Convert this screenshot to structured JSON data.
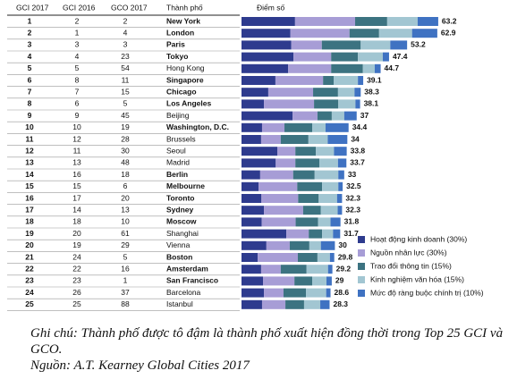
{
  "header": {
    "gci2017": "GCI 2017",
    "gci2016": "GCI 2016",
    "gco2017": "GCO 2017",
    "city": "Thành phố",
    "score": "Điểm số"
  },
  "series": [
    {
      "name": "Hoạt động kinh doanh (30%)",
      "color": "#2e3b8e"
    },
    {
      "name": "Nguồn nhân lực (30%)",
      "color": "#a79dd6"
    },
    {
      "name": "Trao đổi thông tin (15%)",
      "color": "#3c7381"
    },
    {
      "name": "Kinh nghiệm văn hóa (15%)",
      "color": "#a2c6d2"
    },
    {
      "name": "Mức độ ràng buộc chính trị (10%)",
      "color": "#3f72c2"
    }
  ],
  "rows": [
    {
      "gci2017": 1,
      "gci2016": 2,
      "gco2017": 2,
      "city": "New York",
      "bold": true,
      "segments": [
        17.2,
        19.3,
        10.3,
        9.8,
        6.6
      ],
      "score": 63.2
    },
    {
      "gci2017": 2,
      "gci2016": 1,
      "gco2017": 4,
      "city": "London",
      "bold": true,
      "segments": [
        15.7,
        19.0,
        9.5,
        10.6,
        8.1
      ],
      "score": 62.9
    },
    {
      "gci2017": 3,
      "gci2016": 3,
      "gco2017": 3,
      "city": "Paris",
      "bold": true,
      "segments": [
        16.0,
        9.8,
        12.5,
        9.5,
        5.4
      ],
      "score": 53.2
    },
    {
      "gci2017": 4,
      "gci2016": 4,
      "gco2017": 23,
      "city": "Tokyo",
      "bold": true,
      "segments": [
        16.7,
        12.1,
        8.6,
        8.0,
        2.0
      ],
      "score": 47.4
    },
    {
      "gci2017": 5,
      "gci2016": 5,
      "gco2017": 54,
      "city": "Hong Kong",
      "bold": false,
      "segments": [
        15.0,
        13.8,
        10.2,
        3.8,
        1.9
      ],
      "score": 44.7
    },
    {
      "gci2017": 6,
      "gci2016": 8,
      "gco2017": 11,
      "city": "Singapore",
      "bold": true,
      "segments": [
        10.9,
        15.3,
        3.4,
        7.8,
        1.7
      ],
      "score": 39.1
    },
    {
      "gci2017": 7,
      "gci2016": 7,
      "gco2017": 15,
      "city": "Chicago",
      "bold": true,
      "segments": [
        8.6,
        14.4,
        8.0,
        5.3,
        2.0
      ],
      "score": 38.3
    },
    {
      "gci2017": 8,
      "gci2016": 6,
      "gco2017": 5,
      "city": "Los Angeles",
      "bold": true,
      "segments": [
        7.2,
        16.1,
        7.8,
        5.5,
        1.5
      ],
      "score": 38.1
    },
    {
      "gci2017": 9,
      "gci2016": 9,
      "gco2017": 45,
      "city": "Beijing",
      "bold": false,
      "segments": [
        16.4,
        8.0,
        4.6,
        4.0,
        4.0
      ],
      "score": 37.0
    },
    {
      "gci2017": 10,
      "gci2016": 10,
      "gco2017": 19,
      "city": "Washington, D.C.",
      "bold": true,
      "segments": [
        6.6,
        7.2,
        8.9,
        4.3,
        7.4
      ],
      "score": 34.4
    },
    {
      "gci2017": 11,
      "gci2016": 12,
      "gco2017": 28,
      "city": "Brussels",
      "bold": false,
      "segments": [
        6.3,
        6.3,
        8.9,
        6.2,
        6.3
      ],
      "score": 34.0
    },
    {
      "gci2017": 12,
      "gci2016": 11,
      "gco2017": 30,
      "city": "Seoul",
      "bold": false,
      "segments": [
        11.5,
        5.8,
        6.6,
        5.8,
        4.1
      ],
      "score": 33.8
    },
    {
      "gci2017": 13,
      "gci2016": 13,
      "gco2017": 48,
      "city": "Madrid",
      "bold": false,
      "segments": [
        11.0,
        6.3,
        7.7,
        6.0,
        2.7
      ],
      "score": 33.7
    },
    {
      "gci2017": 14,
      "gci2016": 16,
      "gco2017": 18,
      "city": "Berlin",
      "bold": true,
      "segments": [
        6.0,
        10.6,
        6.9,
        7.6,
        1.9
      ],
      "score": 33.0
    },
    {
      "gci2017": 15,
      "gci2016": 15,
      "gco2017": 6,
      "city": "Melbourne",
      "bold": true,
      "segments": [
        5.5,
        12.4,
        8.0,
        5.2,
        1.4
      ],
      "score": 32.5
    },
    {
      "gci2017": 16,
      "gci2016": 17,
      "gco2017": 20,
      "city": "Toronto",
      "bold": true,
      "segments": [
        6.4,
        11.8,
        6.6,
        5.9,
        1.6
      ],
      "score": 32.3
    },
    {
      "gci2017": 17,
      "gci2016": 14,
      "gco2017": 13,
      "city": "Sydney",
      "bold": true,
      "segments": [
        7.2,
        12.6,
        5.7,
        5.4,
        1.4
      ],
      "score": 32.3
    },
    {
      "gci2017": 18,
      "gci2016": 18,
      "gco2017": 10,
      "city": "Moscow",
      "bold": true,
      "segments": [
        6.5,
        10.9,
        7.2,
        4.0,
        3.2
      ],
      "score": 31.8
    },
    {
      "gci2017": 19,
      "gci2016": 20,
      "gco2017": 61,
      "city": "Shanghai",
      "bold": false,
      "segments": [
        14.4,
        7.2,
        4.3,
        3.5,
        2.3
      ],
      "score": 31.7
    },
    {
      "gci2017": 20,
      "gci2016": 19,
      "gco2017": 29,
      "city": "Vienna",
      "bold": false,
      "segments": [
        8.0,
        7.5,
        6.3,
        3.7,
        4.5
      ],
      "score": 30.0
    },
    {
      "gci2017": 21,
      "gci2016": 24,
      "gco2017": 5,
      "city": "Boston",
      "bold": true,
      "segments": [
        5.2,
        12.9,
        6.3,
        4.0,
        1.4
      ],
      "score": 29.8
    },
    {
      "gci2017": 22,
      "gci2016": 22,
      "gco2017": 16,
      "city": "Amsterdam",
      "bold": true,
      "segments": [
        6.3,
        6.3,
        8.3,
        6.9,
        1.4
      ],
      "score": 29.2
    },
    {
      "gci2017": 23,
      "gci2016": 23,
      "gco2017": 1,
      "city": "San Francisco",
      "bold": true,
      "segments": [
        6.9,
        10.1,
        5.7,
        4.6,
        1.7
      ],
      "score": 29.0
    },
    {
      "gci2017": 24,
      "gci2016": 26,
      "gco2017": 37,
      "city": "Barcelona",
      "bold": false,
      "segments": [
        7.2,
        6.3,
        7.2,
        6.5,
        1.4
      ],
      "score": 28.6
    },
    {
      "gci2017": 25,
      "gci2016": 25,
      "gco2017": 88,
      "city": "Istanbul",
      "bold": false,
      "segments": [
        6.6,
        7.5,
        6.0,
        5.2,
        3.0
      ],
      "score": 28.3
    }
  ],
  "note": {
    "text": "Ghi chú: Thành phố được tô đậm là thành phố xuất hiện đồng thời trong Top 25 GCI và GCO.",
    "source": "Nguồn: A.T. Kearney Global Cities 2017"
  }
}
